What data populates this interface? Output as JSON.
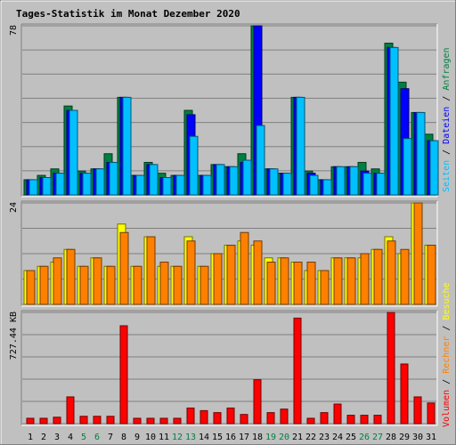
{
  "title": "Tages-Statistik im Monat Dezember 2020",
  "colors": {
    "background": "#c0c0c0",
    "frame": "#808080",
    "gridline": "#808080",
    "title": "#0000ff",
    "tick_weekday": "#000000",
    "tick_weekend": "#008040",
    "anfragen": "#008040",
    "dateien": "#0000ff",
    "seiten": "#00c0ff",
    "besuche": "#ffff00",
    "rechner": "#ff8000",
    "volumen": "#ff0000"
  },
  "legend": {
    "anfragen": "Anfragen",
    "dateien": "Dateien",
    "seiten": "Seiten",
    "besuche": "Besuche",
    "rechner": "Rechner",
    "volumen": "Volumen",
    "separator": "/"
  },
  "chart_data": [
    {
      "type": "bar",
      "panel": "hits",
      "y_max_label": "78",
      "ylim": [
        0,
        78
      ],
      "categories": [
        "1",
        "2",
        "3",
        "4",
        "5",
        "6",
        "7",
        "8",
        "9",
        "10",
        "11",
        "12",
        "13",
        "14",
        "15",
        "16",
        "17",
        "18",
        "19",
        "20",
        "21",
        "22",
        "23",
        "24",
        "25",
        "26",
        "27",
        "28",
        "29",
        "30",
        "31"
      ],
      "weekend": [
        "5",
        "6",
        "12",
        "13",
        "19",
        "20",
        "26",
        "27"
      ],
      "series": [
        {
          "name": "Anfragen",
          "key": "anfragen",
          "values": [
            7,
            9,
            12,
            41,
            11,
            12,
            19,
            45,
            9,
            15,
            10,
            9,
            39,
            9,
            14,
            13,
            19,
            78,
            12,
            10,
            45,
            11,
            7,
            13,
            13,
            15,
            12,
            70,
            52,
            38,
            28
          ]
        },
        {
          "name": "Dateien",
          "key": "dateien",
          "values": [
            7,
            8,
            10,
            39,
            10,
            12,
            15,
            45,
            9,
            14,
            8,
            9,
            37,
            9,
            14,
            13,
            15,
            78,
            12,
            10,
            45,
            10,
            7,
            13,
            13,
            11,
            10,
            68,
            49,
            38,
            25
          ]
        },
        {
          "name": "Seiten",
          "key": "seiten",
          "values": [
            7,
            8,
            10,
            39,
            10,
            12,
            15,
            45,
            9,
            14,
            8,
            9,
            27,
            9,
            14,
            13,
            16,
            32,
            12,
            10,
            45,
            9,
            7,
            13,
            13,
            10,
            10,
            68,
            26,
            38,
            25
          ]
        }
      ]
    },
    {
      "type": "bar",
      "panel": "visits",
      "y_max_label": "24",
      "ylim": [
        0,
        24
      ],
      "categories": [
        "1",
        "2",
        "3",
        "4",
        "5",
        "6",
        "7",
        "8",
        "9",
        "10",
        "11",
        "12",
        "13",
        "14",
        "15",
        "16",
        "17",
        "18",
        "19",
        "20",
        "21",
        "22",
        "23",
        "24",
        "25",
        "26",
        "27",
        "28",
        "29",
        "30",
        "31"
      ],
      "series": [
        {
          "name": "Besuche",
          "key": "besuche",
          "values": [
            8,
            9,
            10,
            13,
            9,
            11,
            9,
            19,
            9,
            16,
            9,
            9,
            16,
            9,
            12,
            14,
            15,
            14,
            11,
            11,
            10,
            8,
            8,
            11,
            11,
            11,
            13,
            16,
            12,
            24,
            14
          ]
        },
        {
          "name": "Rechner",
          "key": "rechner",
          "values": [
            8,
            9,
            11,
            13,
            9,
            11,
            9,
            17,
            9,
            16,
            10,
            9,
            15,
            9,
            12,
            14,
            17,
            15,
            10,
            11,
            10,
            10,
            8,
            11,
            11,
            12,
            13,
            15,
            13,
            24,
            14
          ]
        }
      ]
    },
    {
      "type": "bar",
      "panel": "volume",
      "y_max_label": "727.44 KB",
      "ylim": [
        0,
        727.44
      ],
      "categories": [
        "1",
        "2",
        "3",
        "4",
        "5",
        "6",
        "7",
        "8",
        "9",
        "10",
        "11",
        "12",
        "13",
        "14",
        "15",
        "16",
        "17",
        "18",
        "19",
        "20",
        "21",
        "22",
        "23",
        "24",
        "25",
        "26",
        "27",
        "28",
        "29",
        "30",
        "31"
      ],
      "series": [
        {
          "name": "Volumen",
          "key": "volumen",
          "values": [
            35,
            35,
            42,
            175,
            48,
            48,
            48,
            640,
            35,
            35,
            35,
            35,
            102,
            85,
            72,
            102,
            60,
            287,
            72,
            95,
            690,
            35,
            72,
            128,
            55,
            55,
            55,
            727,
            390,
            175,
            135
          ]
        }
      ]
    }
  ]
}
